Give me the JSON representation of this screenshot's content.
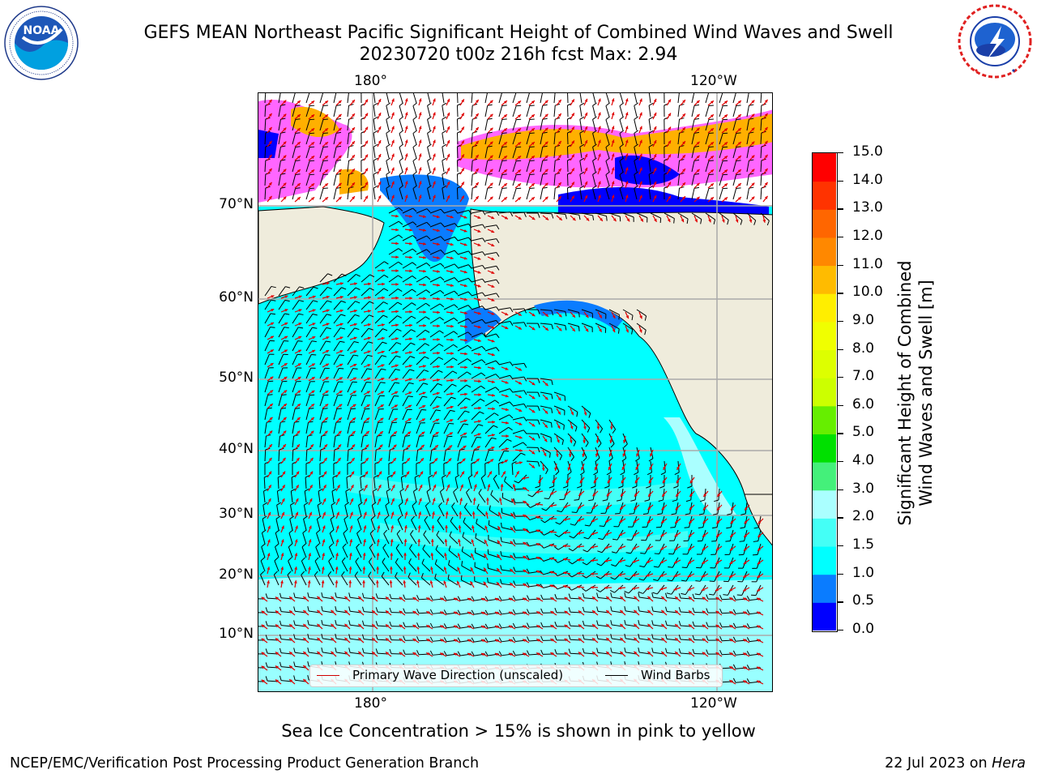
{
  "title": {
    "line1": "GEFS MEAN Northeast Pacific Significant Height of Combined Wind Waves and Swell",
    "line2": "20230720 t00z 216h fcst   Max: 2.94"
  },
  "logos": {
    "noaa": {
      "text": "NOAA",
      "ring_text": "NATIONAL OCEANIC AND ATMOSPHERIC ADMINISTRATION · U.S. DEPARTMENT OF COMMERCE"
    },
    "nws": {
      "ring_text": "NATIONAL WEATHER SERVICE"
    }
  },
  "map": {
    "lon_labels_top": [
      "180°",
      "120°W"
    ],
    "lon_labels_bottom": [
      "180°",
      "120°W"
    ],
    "lat_labels": [
      "70°N",
      "60°N",
      "50°N",
      "40°N",
      "30°N",
      "20°N",
      "10°N"
    ],
    "colors": {
      "land": "#efecdc",
      "sea_ice": "#ff66ff",
      "ice_orange": "#ffb000",
      "wave_arrow": "#e00000",
      "wind_barb": "#000000",
      "grid": "#aaaaaa"
    },
    "legend": {
      "wave_label": "Primary Wave Direction (unscaled)",
      "wind_label": "Wind Barbs"
    }
  },
  "colorbar": {
    "label_line1": "Significant Height of Combined",
    "label_line2": "Wind Waves and Swell [m]",
    "ticks": [
      "15.0",
      "14.0",
      "13.0",
      "12.0",
      "11.0",
      "10.0",
      "9.0",
      "8.0",
      "7.0",
      "6.0",
      "5.0",
      "4.0",
      "3.0",
      "2.0",
      "1.5",
      "1.0",
      "0.5",
      "0.0"
    ],
    "bins": [
      {
        "range": "0.0-0.5",
        "color": "#0000ff"
      },
      {
        "range": "0.5-1.0",
        "color": "#0a7cff"
      },
      {
        "range": "1.0-1.5",
        "color": "#00ffff"
      },
      {
        "range": "1.5-2.0",
        "color": "#44fff6"
      },
      {
        "range": "2.0-3.0",
        "color": "#aaffff"
      },
      {
        "range": "3.0-4.0",
        "color": "#44f07a"
      },
      {
        "range": "4.0-5.0",
        "color": "#00e000"
      },
      {
        "range": "5.0-6.0",
        "color": "#66ee00"
      },
      {
        "range": "6.0-7.0",
        "color": "#ccff00"
      },
      {
        "range": "7.0-8.0",
        "color": "#ddff00"
      },
      {
        "range": "8.0-9.0",
        "color": "#f0ff00"
      },
      {
        "range": "9.0-10.0",
        "color": "#ffee00"
      },
      {
        "range": "10.0-11.0",
        "color": "#ffbb00"
      },
      {
        "range": "11.0-12.0",
        "color": "#ff8800"
      },
      {
        "range": "12.0-13.0",
        "color": "#ff6600"
      },
      {
        "range": "13.0-14.0",
        "color": "#ff3300"
      },
      {
        "range": "14.0-15.0",
        "color": "#ff0000"
      }
    ]
  },
  "caption": "Sea Ice Concentration > 15% is shown in pink to yellow",
  "footer": {
    "left": "NCEP/EMC/Verification Post Processing Product Generation Branch",
    "right_prefix": "22 Jul 2023 on ",
    "right_host": "Hera"
  }
}
